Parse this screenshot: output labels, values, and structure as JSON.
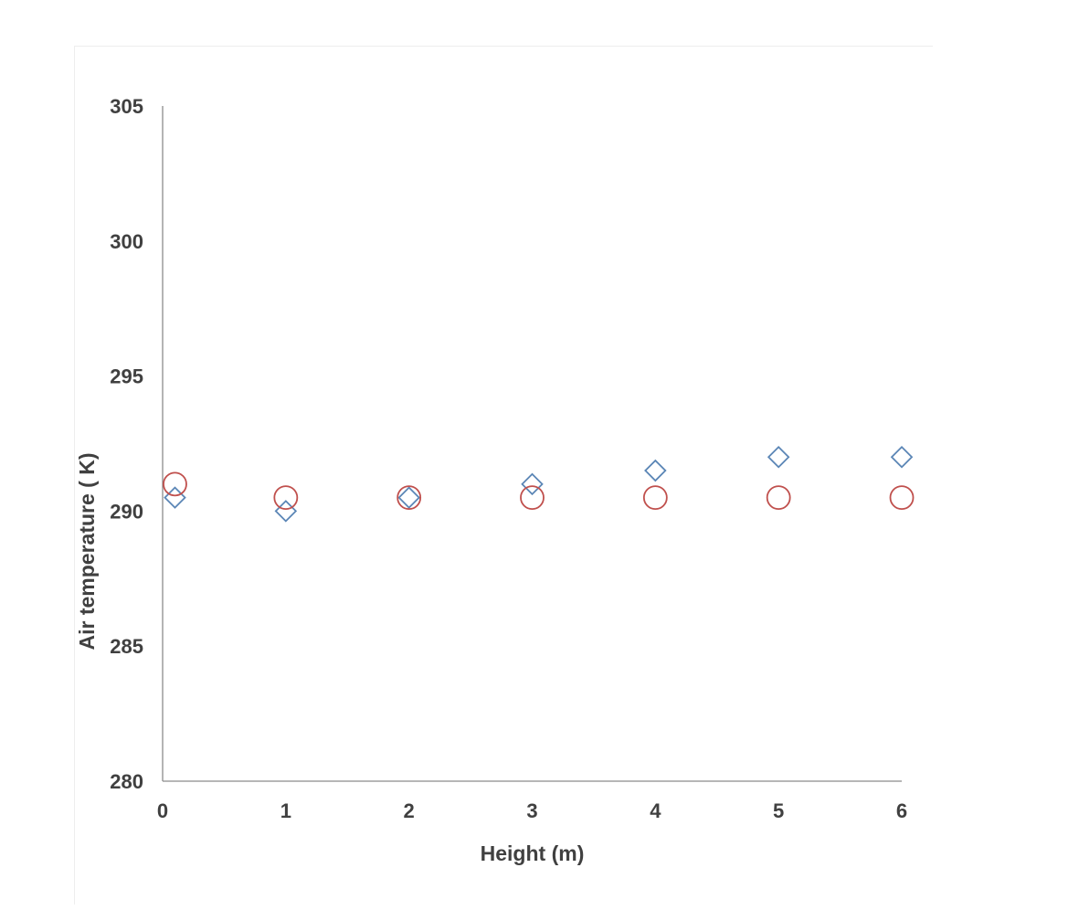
{
  "chart_data": {
    "type": "scatter",
    "title": "",
    "xlabel": "Height (m)",
    "ylabel": "Air temperature ( K)",
    "xlim": [
      0,
      6
    ],
    "ylim": [
      280,
      305
    ],
    "x_ticks": [
      0,
      1,
      2,
      3,
      4,
      5,
      6
    ],
    "y_ticks": [
      280,
      285,
      290,
      295,
      300,
      305
    ],
    "grid": false,
    "legend": "none",
    "series": [
      {
        "marker": "diamond",
        "color": "#5b86b6",
        "x": [
          0.1,
          1,
          2,
          3,
          4,
          5,
          6
        ],
        "y": [
          290.5,
          290.0,
          290.5,
          291.0,
          291.5,
          292.0,
          292.0
        ]
      },
      {
        "marker": "circle",
        "color": "#c0504d",
        "x": [
          0.1,
          1,
          2,
          3,
          4,
          5,
          6
        ],
        "y": [
          291.0,
          290.5,
          290.5,
          290.5,
          290.5,
          290.5,
          290.5
        ]
      }
    ]
  }
}
